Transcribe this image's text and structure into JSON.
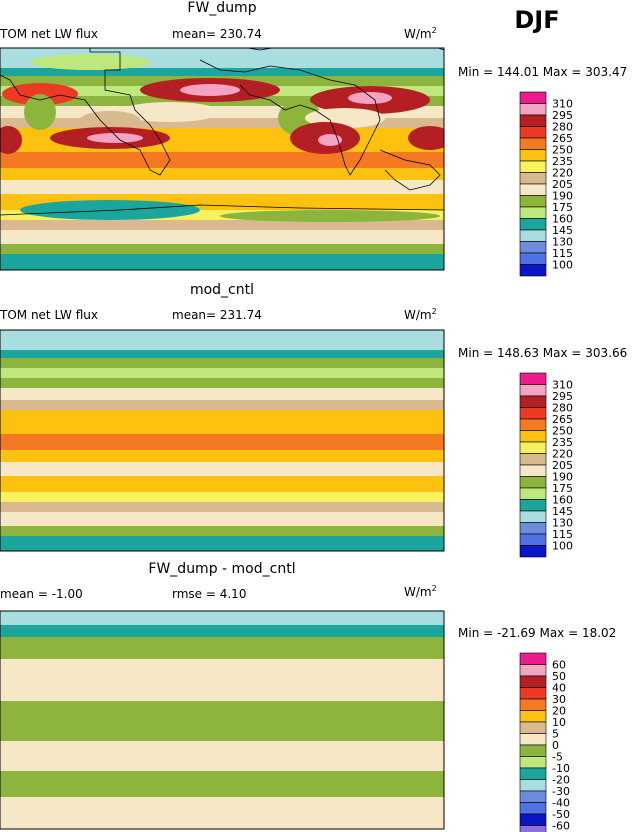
{
  "season": "DJF",
  "units_base": "W/m",
  "units_exp": "2",
  "chart_data": [
    {
      "type": "heatmap",
      "title": "FW_dump",
      "subtitle_left": "TOM net LW flux",
      "subtitle_center": "mean= 230.74",
      "stats": "Min = 144.01 Max = 303.47",
      "levels": [
        "310",
        "295",
        "280",
        "265",
        "250",
        "235",
        "220",
        "205",
        "190",
        "175",
        "160",
        "145",
        "130",
        "115",
        "100"
      ],
      "colors": [
        "#ee1b8c",
        "#f4a3c3",
        "#b41f23",
        "#ec3a24",
        "#f47922",
        "#fcc20f",
        "#f8f15f",
        "#d9b98e",
        "#f6e7c6",
        "#8db43d",
        "#bfe87c",
        "#1ba59c",
        "#a8dedf",
        "#6d8ce0",
        "#4f73e6"
      ],
      "bottom_color": "#0b15c8"
    },
    {
      "type": "heatmap",
      "title": "mod_cntl",
      "subtitle_left": "TOM net LW flux",
      "subtitle_center": "mean= 231.74",
      "stats": "Min = 148.63 Max = 303.66",
      "levels": [
        "310",
        "295",
        "280",
        "265",
        "250",
        "235",
        "220",
        "205",
        "190",
        "175",
        "160",
        "145",
        "130",
        "115",
        "100"
      ],
      "colors": [
        "#ee1b8c",
        "#f4a3c3",
        "#b41f23",
        "#ec3a24",
        "#f47922",
        "#fcc20f",
        "#f8f15f",
        "#d9b98e",
        "#f6e7c6",
        "#8db43d",
        "#bfe87c",
        "#1ba59c",
        "#a8dedf",
        "#6d8ce0",
        "#4f73e6"
      ],
      "bottom_color": "#0b15c8"
    },
    {
      "type": "heatmap",
      "title": "FW_dump - mod_cntl",
      "subtitle_left": "mean =   -1.00",
      "subtitle_center": "rmse =    4.10",
      "stats": "Min = -21.69 Max =  18.02",
      "levels": [
        "60",
        "50",
        "40",
        "30",
        "20",
        "10",
        "5",
        "0",
        "-5",
        "-10",
        "-20",
        "-30",
        "-40",
        "-50",
        "-60"
      ],
      "colors": [
        "#ee1b8c",
        "#f4a3c3",
        "#b41f23",
        "#ec3a24",
        "#f47922",
        "#fcc20f",
        "#d9b98e",
        "#f6e7c6",
        "#8db43d",
        "#bfe87c",
        "#1ba59c",
        "#a8dedf",
        "#6d8ce0",
        "#4f73e6",
        "#0b15c8"
      ],
      "bottom_color": "#8f6fdd"
    }
  ]
}
